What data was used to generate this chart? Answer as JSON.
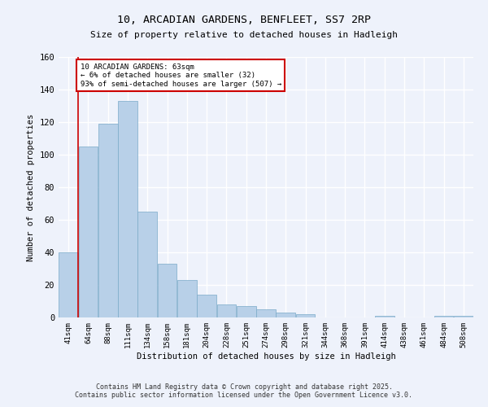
{
  "title1": "10, ARCADIAN GARDENS, BENFLEET, SS7 2RP",
  "title2": "Size of property relative to detached houses in Hadleigh",
  "xlabel": "Distribution of detached houses by size in Hadleigh",
  "ylabel": "Number of detached properties",
  "categories": [
    "41sqm",
    "64sqm",
    "88sqm",
    "111sqm",
    "134sqm",
    "158sqm",
    "181sqm",
    "204sqm",
    "228sqm",
    "251sqm",
    "274sqm",
    "298sqm",
    "321sqm",
    "344sqm",
    "368sqm",
    "391sqm",
    "414sqm",
    "438sqm",
    "461sqm",
    "484sqm",
    "508sqm"
  ],
  "values": [
    40,
    105,
    119,
    133,
    65,
    33,
    23,
    14,
    8,
    7,
    5,
    3,
    2,
    0,
    0,
    0,
    1,
    0,
    0,
    1,
    1
  ],
  "bar_color": "#b8d0e8",
  "bar_edge_color": "#7aaac8",
  "annotation_text": "10 ARCADIAN GARDENS: 63sqm\n← 6% of detached houses are smaller (32)\n93% of semi-detached houses are larger (507) →",
  "annotation_box_color": "#ffffff",
  "annotation_box_edge_color": "#cc0000",
  "vline_color": "#cc0000",
  "vline_x": 0.5,
  "ylim": [
    0,
    160
  ],
  "yticks": [
    0,
    20,
    40,
    60,
    80,
    100,
    120,
    140,
    160
  ],
  "background_color": "#eef2fb",
  "grid_color": "#ffffff",
  "footer_line1": "Contains HM Land Registry data © Crown copyright and database right 2025.",
  "footer_line2": "Contains public sector information licensed under the Open Government Licence v3.0."
}
